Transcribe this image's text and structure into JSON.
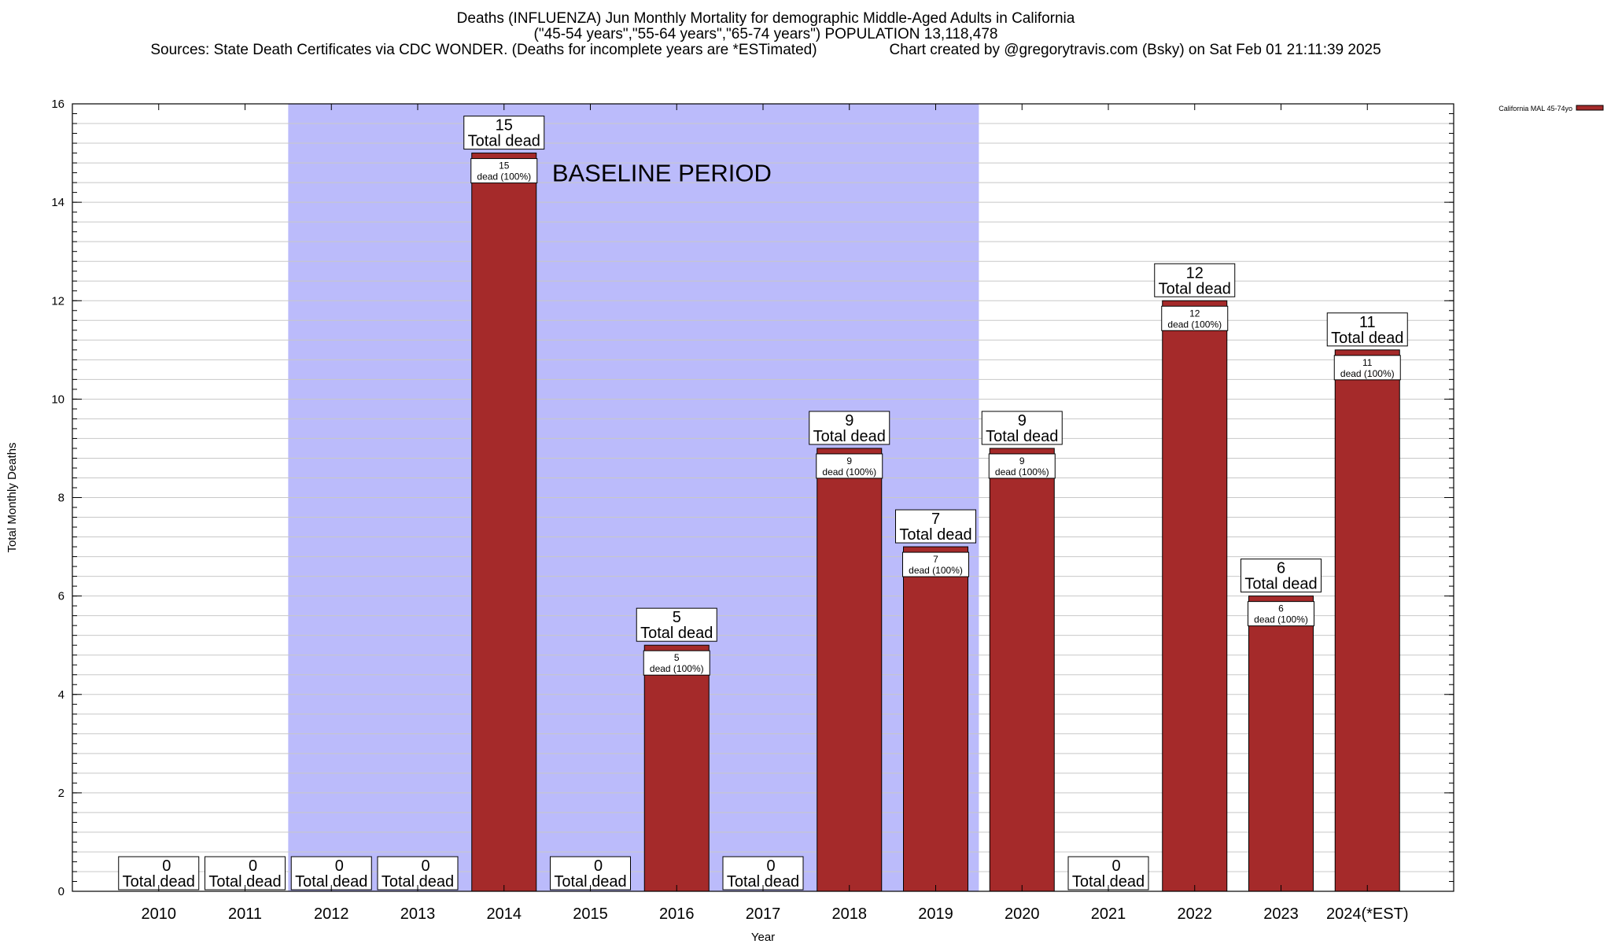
{
  "title": {
    "line1": "Deaths (INFLUENZA) Jun Monthly Mortality for demographic Middle-Aged Adults in California",
    "line2": "(\"45-54 years\",\"55-64 years\",\"65-74 years\") POPULATION 13,118,478",
    "line3_left": "Sources: State Death Certificates via CDC WONDER. (Deaths for incomplete years are *ESTimated)",
    "line3_right": "Chart created by @gregorytravis.com (Bsky) on Sat Feb 01 21:11:39 2025"
  },
  "chart_data": {
    "type": "bar",
    "categories": [
      "2010",
      "2011",
      "2012",
      "2013",
      "2014",
      "2015",
      "2016",
      "2017",
      "2018",
      "2019",
      "2020",
      "2021",
      "2022",
      "2023",
      "2024(*EST)"
    ],
    "series": [
      {
        "name": "California MAL 45-74yo",
        "values": [
          0,
          0,
          0,
          0,
          15,
          0,
          5,
          0,
          9,
          7,
          9,
          0,
          12,
          6,
          11
        ]
      }
    ],
    "xlabel": "Year",
    "ylabel": "Total Monthly Deaths",
    "ylim": [
      0,
      16
    ],
    "yticks": [
      0,
      2,
      4,
      6,
      8,
      10,
      12,
      14,
      16
    ],
    "grid": true,
    "legend_position": "top-right",
    "baseline": {
      "label": "BASELINE PERIOD",
      "from": "2012",
      "to": "2019"
    },
    "total_label": "Total dead",
    "inner_label_suffix": "dead (100%)",
    "colors": {
      "bar": "#a52a2a",
      "baseline": "#bbbbfb"
    }
  }
}
